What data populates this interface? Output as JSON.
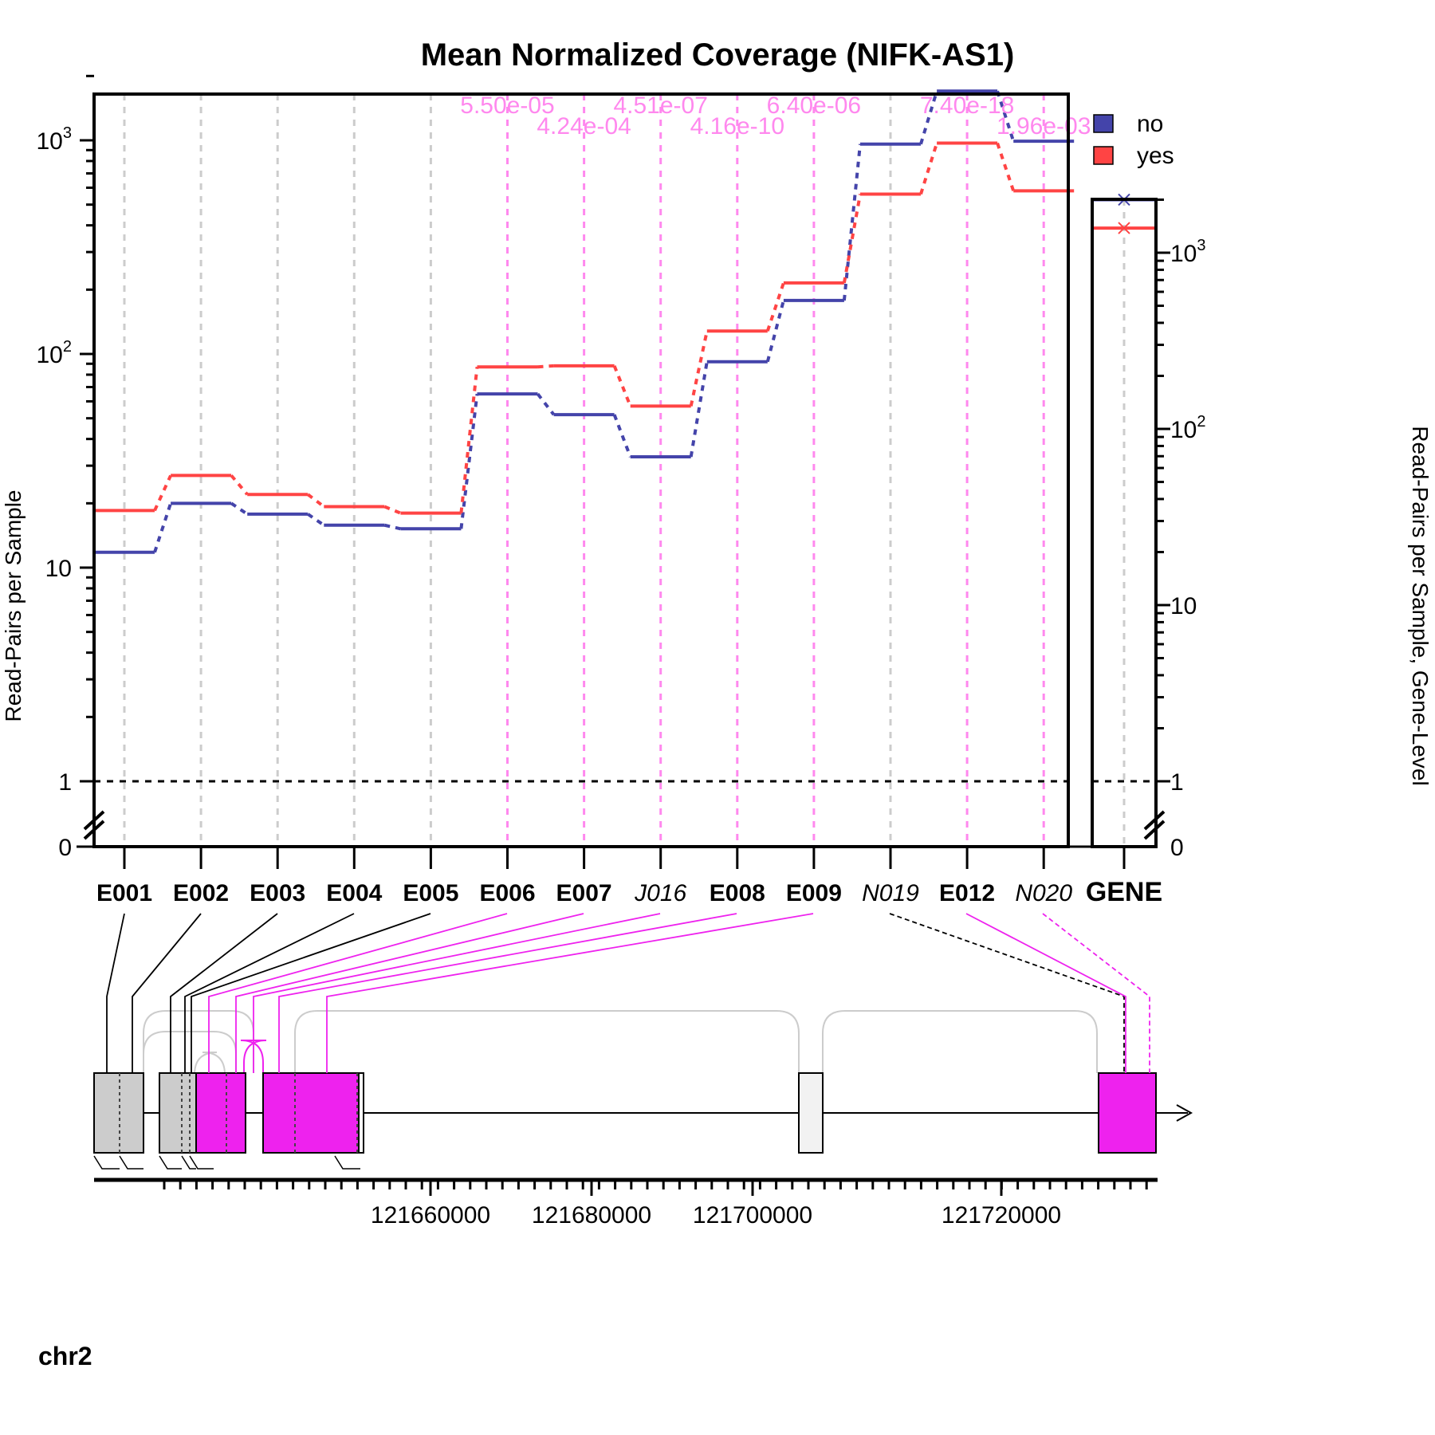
{
  "title": "Mean Normalized Coverage (NIFK-AS1)",
  "colors": {
    "no": "#4444aa",
    "yes": "#ff4444",
    "sig": "#ee22ee",
    "sigLight": "#ff88ee",
    "nonsig": "#cccccc",
    "exon_nonsig": "#cccccc",
    "novel": "#f2f2f2"
  },
  "chart_data": {
    "type": "line",
    "title": "Mean Normalized Coverage (NIFK-AS1)",
    "ylabel": "Read-Pairs per Sample",
    "ylabel_right": "Read-Pairs per Sample, Gene-Level",
    "yscale": "log",
    "ylim": [
      0,
      2000
    ],
    "y_ticks": [
      {
        "value": 0,
        "label": "0"
      },
      {
        "value": 1,
        "label": "1"
      },
      {
        "value": 10,
        "label": "10"
      },
      {
        "value": 100,
        "label": "10",
        "sup": "2"
      },
      {
        "value": 1000,
        "label": "10",
        "sup": "3"
      }
    ],
    "y_ticks_right": [
      {
        "value": 0,
        "label": "0"
      },
      {
        "value": 1,
        "label": "1"
      },
      {
        "value": 10,
        "label": "10"
      },
      {
        "value": 100,
        "label": "10",
        "sup": "2"
      },
      {
        "value": 1000,
        "label": "10",
        "sup": "3"
      }
    ],
    "reference_line": 1,
    "categories": [
      {
        "label": "E001",
        "italic": false,
        "significant": false
      },
      {
        "label": "E002",
        "italic": false,
        "significant": false
      },
      {
        "label": "E003",
        "italic": false,
        "significant": false
      },
      {
        "label": "E004",
        "italic": false,
        "significant": false
      },
      {
        "label": "E005",
        "italic": false,
        "significant": false
      },
      {
        "label": "E006",
        "italic": false,
        "significant": true
      },
      {
        "label": "E007",
        "italic": false,
        "significant": true
      },
      {
        "label": "J016",
        "italic": true,
        "significant": true
      },
      {
        "label": "E008",
        "italic": false,
        "significant": true
      },
      {
        "label": "E009",
        "italic": false,
        "significant": true
      },
      {
        "label": "N019",
        "italic": true,
        "significant": false
      },
      {
        "label": "E012",
        "italic": false,
        "significant": true
      },
      {
        "label": "N020",
        "italic": true,
        "significant": true
      }
    ],
    "series": [
      {
        "name": "no",
        "values": [
          11.8,
          20,
          17.8,
          15.8,
          15.2,
          65,
          52,
          33,
          92,
          178,
          960,
          1700,
          990
        ]
      },
      {
        "name": "yes",
        "values": [
          18.5,
          27,
          22,
          19.3,
          18,
          87,
          88,
          57,
          128,
          215,
          560,
          970,
          580
        ]
      }
    ],
    "pvalues": [
      {
        "feature": "E006",
        "label": "5.50e-05",
        "row": 0
      },
      {
        "feature": "E007",
        "label": "4.24e-04",
        "row": 1
      },
      {
        "feature": "J016",
        "label": "4.51e-07",
        "row": 0
      },
      {
        "feature": "E008",
        "label": "4.16e-10",
        "row": 1
      },
      {
        "feature": "E009",
        "label": "6.40e-06",
        "row": 0
      },
      {
        "feature": "E012",
        "label": "7.40e-18",
        "row": 0
      },
      {
        "feature": "N020",
        "label": "1.96e-03",
        "row": 1
      }
    ],
    "gene_level": {
      "label": "GENE",
      "no": 2000,
      "yes": 1380,
      "ylim": [
        0,
        2600
      ]
    },
    "legend": {
      "position": "top-right",
      "entries": [
        "no",
        "yes"
      ]
    },
    "grid": true
  },
  "genome": {
    "chromosome": "chr2",
    "ticks": [
      "121660000",
      "121680000",
      "121700000",
      "121720000"
    ]
  }
}
